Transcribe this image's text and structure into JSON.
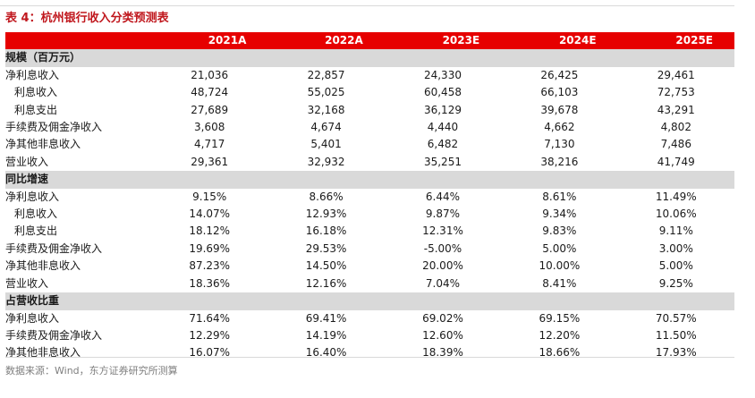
{
  "title": "表 4：杭州银行收入分类预测表",
  "header": {
    "label": "",
    "years": [
      "2021A",
      "2022A",
      "2023E",
      "2024E",
      "2025E"
    ]
  },
  "sections": [
    {
      "name": "规模（百万元）",
      "rows": [
        {
          "label": "净利息收入",
          "sub": false,
          "values": [
            "21,036",
            "22,857",
            "24,330",
            "26,425",
            "29,461"
          ]
        },
        {
          "label": "利息收入",
          "sub": true,
          "values": [
            "48,724",
            "55,025",
            "60,458",
            "66,103",
            "72,753"
          ]
        },
        {
          "label": "利息支出",
          "sub": true,
          "values": [
            "27,689",
            "32,168",
            "36,129",
            "39,678",
            "43,291"
          ]
        },
        {
          "label": "手续费及佣金净收入",
          "sub": false,
          "values": [
            "3,608",
            "4,674",
            "4,440",
            "4,662",
            "4,802"
          ]
        },
        {
          "label": "净其他非息收入",
          "sub": false,
          "values": [
            "4,717",
            "5,401",
            "6,482",
            "7,130",
            "7,486"
          ]
        },
        {
          "label": "营业收入",
          "sub": false,
          "values": [
            "29,361",
            "32,932",
            "35,251",
            "38,216",
            "41,749"
          ]
        }
      ]
    },
    {
      "name": "同比增速",
      "rows": [
        {
          "label": "净利息收入",
          "sub": false,
          "values": [
            "9.15%",
            "8.66%",
            "6.44%",
            "8.61%",
            "11.49%"
          ]
        },
        {
          "label": "利息收入",
          "sub": true,
          "values": [
            "14.07%",
            "12.93%",
            "9.87%",
            "9.34%",
            "10.06%"
          ]
        },
        {
          "label": "利息支出",
          "sub": true,
          "values": [
            "18.12%",
            "16.18%",
            "12.31%",
            "9.83%",
            "9.11%"
          ]
        },
        {
          "label": "手续费及佣金净收入",
          "sub": false,
          "values": [
            "19.69%",
            "29.53%",
            "-5.00%",
            "5.00%",
            "3.00%"
          ]
        },
        {
          "label": "净其他非息收入",
          "sub": false,
          "values": [
            "87.23%",
            "14.50%",
            "20.00%",
            "10.00%",
            "5.00%"
          ]
        },
        {
          "label": "营业收入",
          "sub": false,
          "values": [
            "18.36%",
            "12.16%",
            "7.04%",
            "8.41%",
            "9.25%"
          ]
        }
      ]
    },
    {
      "name": "占营收比重",
      "rows": [
        {
          "label": "净利息收入",
          "sub": false,
          "values": [
            "71.64%",
            "69.41%",
            "69.02%",
            "69.15%",
            "70.57%"
          ]
        },
        {
          "label": "手续费及佣金净收入",
          "sub": false,
          "values": [
            "12.29%",
            "14.19%",
            "12.60%",
            "12.20%",
            "11.50%"
          ]
        },
        {
          "label": "净其他非息收入",
          "sub": false,
          "values": [
            "16.07%",
            "16.40%",
            "18.39%",
            "18.66%",
            "17.93%"
          ]
        }
      ]
    }
  ],
  "source": "数据来源：Wind，东方证券研究所测算",
  "colors": {
    "title": "#c0171d",
    "header_bg": "#e60000",
    "section_bg": "#d9d9d9"
  }
}
